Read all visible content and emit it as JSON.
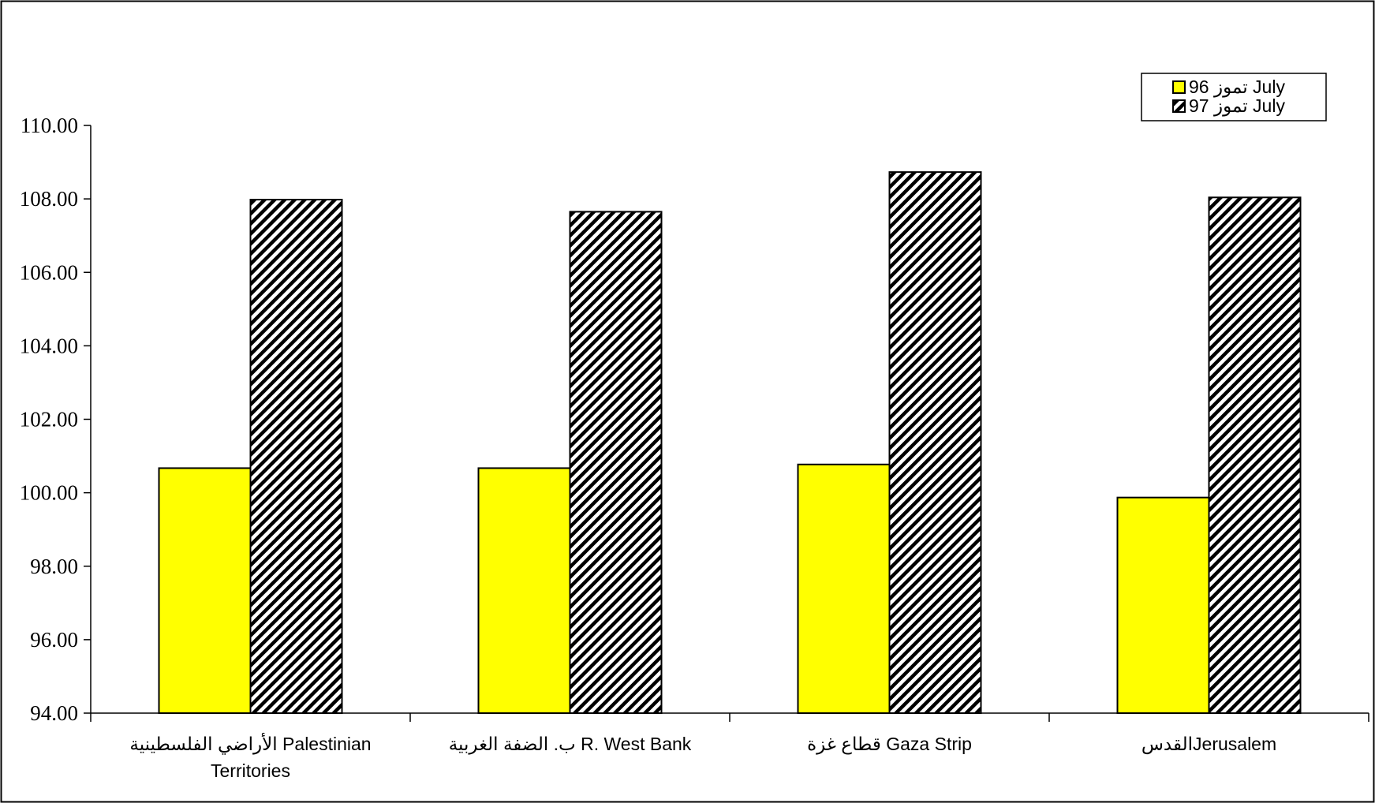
{
  "chart_data": {
    "type": "bar",
    "title": "",
    "xlabel": "",
    "ylabel": "",
    "categories": [
      [
        "الأراضي الفلسطينية Palestinian",
        "Territories"
      ],
      [
        "ب. الضفة الغربية R. West Bank"
      ],
      [
        "قطاع غزة Gaza Strip"
      ],
      [
        "القدسJerusalem"
      ]
    ],
    "series": [
      {
        "name": "تموز 96  July",
        "values": [
          100.67,
          100.67,
          100.77,
          99.87
        ],
        "color": "#ffff00",
        "pattern": "solid"
      },
      {
        "name": "تموز 97  July",
        "values": [
          107.98,
          107.65,
          108.73,
          108.04
        ],
        "color": "#ffffff",
        "pattern": "diagonal-hatch"
      }
    ],
    "ylim": [
      94,
      110
    ],
    "yticks": [
      "94.00",
      "96.00",
      "98.00",
      "100.00",
      "102.00",
      "104.00",
      "106.00",
      "108.00",
      "110.00"
    ],
    "grid": false,
    "legend_position": "top-right"
  }
}
